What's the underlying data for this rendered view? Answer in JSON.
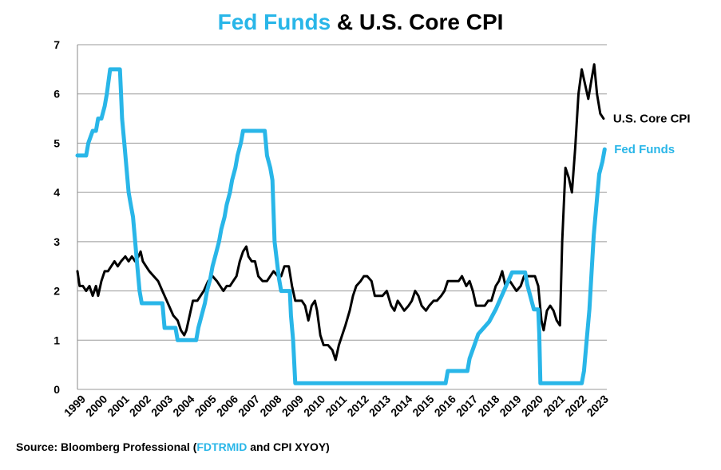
{
  "title": {
    "part1": "Fed Funds",
    "part2": " & U.S. Core CPI"
  },
  "source": {
    "prefix": "Source: Bloomberg Professional  (",
    "highlight": "FDTRMID",
    "suffix": " and CPI XYOY)"
  },
  "colors": {
    "fed_funds": "#29b6e8",
    "core_cpi": "#000000",
    "grid": "#999999"
  },
  "chart_data": {
    "type": "line",
    "title": "Fed Funds & U.S. Core CPI",
    "xlim": [
      1999,
      2023.3
    ],
    "ylim": [
      0,
      7
    ],
    "yticks": [
      0,
      1,
      2,
      3,
      4,
      5,
      6,
      7
    ],
    "xticks": [
      "1999",
      "2000",
      "2001",
      "2002",
      "2003",
      "2004",
      "2005",
      "2006",
      "2007",
      "2008",
      "2009",
      "2010",
      "2011",
      "2012",
      "2013",
      "2014",
      "2015",
      "2016",
      "2017",
      "2018",
      "2019",
      "2020",
      "2021",
      "2022",
      "2023"
    ],
    "grid": "horizontal",
    "legend": "labels at right end of lines",
    "series": [
      {
        "name": "U.S. Core CPI",
        "color": "#000000",
        "points": [
          [
            1999.0,
            2.4
          ],
          [
            1999.1,
            2.1
          ],
          [
            1999.25,
            2.1
          ],
          [
            1999.4,
            2.0
          ],
          [
            1999.55,
            2.1
          ],
          [
            1999.7,
            1.9
          ],
          [
            1999.85,
            2.1
          ],
          [
            1999.95,
            1.9
          ],
          [
            2000.1,
            2.2
          ],
          [
            2000.25,
            2.4
          ],
          [
            2000.4,
            2.4
          ],
          [
            2000.55,
            2.5
          ],
          [
            2000.7,
            2.6
          ],
          [
            2000.85,
            2.5
          ],
          [
            2001.0,
            2.6
          ],
          [
            2001.2,
            2.7
          ],
          [
            2001.35,
            2.6
          ],
          [
            2001.5,
            2.7
          ],
          [
            2001.65,
            2.6
          ],
          [
            2001.8,
            2.7
          ],
          [
            2001.9,
            2.8
          ],
          [
            2002.0,
            2.6
          ],
          [
            2002.15,
            2.5
          ],
          [
            2002.3,
            2.4
          ],
          [
            2002.5,
            2.3
          ],
          [
            2002.7,
            2.2
          ],
          [
            2002.9,
            2.0
          ],
          [
            2003.0,
            1.9
          ],
          [
            2003.2,
            1.7
          ],
          [
            2003.4,
            1.5
          ],
          [
            2003.6,
            1.4
          ],
          [
            2003.75,
            1.2
          ],
          [
            2003.9,
            1.1
          ],
          [
            2004.0,
            1.2
          ],
          [
            2004.15,
            1.5
          ],
          [
            2004.3,
            1.8
          ],
          [
            2004.5,
            1.8
          ],
          [
            2004.65,
            1.9
          ],
          [
            2004.8,
            2.0
          ],
          [
            2005.0,
            2.2
          ],
          [
            2005.2,
            2.3
          ],
          [
            2005.4,
            2.2
          ],
          [
            2005.55,
            2.1
          ],
          [
            2005.7,
            2.0
          ],
          [
            2005.85,
            2.1
          ],
          [
            2006.0,
            2.1
          ],
          [
            2006.15,
            2.2
          ],
          [
            2006.3,
            2.3
          ],
          [
            2006.45,
            2.6
          ],
          [
            2006.6,
            2.8
          ],
          [
            2006.75,
            2.9
          ],
          [
            2006.85,
            2.7
          ],
          [
            2007.0,
            2.6
          ],
          [
            2007.15,
            2.6
          ],
          [
            2007.3,
            2.3
          ],
          [
            2007.5,
            2.2
          ],
          [
            2007.7,
            2.2
          ],
          [
            2007.85,
            2.3
          ],
          [
            2008.0,
            2.4
          ],
          [
            2008.2,
            2.3
          ],
          [
            2008.35,
            2.3
          ],
          [
            2008.5,
            2.5
          ],
          [
            2008.7,
            2.5
          ],
          [
            2008.85,
            2.1
          ],
          [
            2009.0,
            1.8
          ],
          [
            2009.15,
            1.8
          ],
          [
            2009.3,
            1.8
          ],
          [
            2009.45,
            1.7
          ],
          [
            2009.6,
            1.4
          ],
          [
            2009.75,
            1.7
          ],
          [
            2009.9,
            1.8
          ],
          [
            2010.0,
            1.6
          ],
          [
            2010.15,
            1.1
          ],
          [
            2010.3,
            0.9
          ],
          [
            2010.5,
            0.9
          ],
          [
            2010.7,
            0.8
          ],
          [
            2010.85,
            0.6
          ],
          [
            2011.0,
            0.9
          ],
          [
            2011.15,
            1.1
          ],
          [
            2011.3,
            1.3
          ],
          [
            2011.5,
            1.6
          ],
          [
            2011.65,
            1.9
          ],
          [
            2011.8,
            2.1
          ],
          [
            2012.0,
            2.2
          ],
          [
            2012.15,
            2.3
          ],
          [
            2012.3,
            2.3
          ],
          [
            2012.5,
            2.2
          ],
          [
            2012.65,
            1.9
          ],
          [
            2012.85,
            1.9
          ],
          [
            2013.0,
            1.9
          ],
          [
            2013.2,
            2.0
          ],
          [
            2013.4,
            1.7
          ],
          [
            2013.55,
            1.6
          ],
          [
            2013.7,
            1.8
          ],
          [
            2013.85,
            1.7
          ],
          [
            2014.0,
            1.6
          ],
          [
            2014.2,
            1.7
          ],
          [
            2014.35,
            1.8
          ],
          [
            2014.5,
            2.0
          ],
          [
            2014.65,
            1.9
          ],
          [
            2014.8,
            1.7
          ],
          [
            2015.0,
            1.6
          ],
          [
            2015.15,
            1.7
          ],
          [
            2015.35,
            1.8
          ],
          [
            2015.5,
            1.8
          ],
          [
            2015.7,
            1.9
          ],
          [
            2015.85,
            2.0
          ],
          [
            2016.0,
            2.2
          ],
          [
            2016.15,
            2.2
          ],
          [
            2016.3,
            2.2
          ],
          [
            2016.5,
            2.2
          ],
          [
            2016.65,
            2.3
          ],
          [
            2016.85,
            2.1
          ],
          [
            2017.0,
            2.2
          ],
          [
            2017.15,
            2.0
          ],
          [
            2017.3,
            1.7
          ],
          [
            2017.5,
            1.7
          ],
          [
            2017.7,
            1.7
          ],
          [
            2017.85,
            1.8
          ],
          [
            2018.0,
            1.8
          ],
          [
            2018.2,
            2.1
          ],
          [
            2018.35,
            2.2
          ],
          [
            2018.5,
            2.4
          ],
          [
            2018.65,
            2.1
          ],
          [
            2018.85,
            2.2
          ],
          [
            2019.0,
            2.1
          ],
          [
            2019.15,
            2.0
          ],
          [
            2019.35,
            2.1
          ],
          [
            2019.5,
            2.3
          ],
          [
            2019.7,
            2.3
          ],
          [
            2019.85,
            2.3
          ],
          [
            2020.0,
            2.3
          ],
          [
            2020.15,
            2.1
          ],
          [
            2020.3,
            1.4
          ],
          [
            2020.4,
            1.2
          ],
          [
            2020.55,
            1.6
          ],
          [
            2020.7,
            1.7
          ],
          [
            2020.85,
            1.6
          ],
          [
            2021.0,
            1.4
          ],
          [
            2021.15,
            1.3
          ],
          [
            2021.25,
            3.0
          ],
          [
            2021.4,
            4.5
          ],
          [
            2021.55,
            4.3
          ],
          [
            2021.7,
            4.0
          ],
          [
            2021.85,
            4.9
          ],
          [
            2022.0,
            6.0
          ],
          [
            2022.15,
            6.5
          ],
          [
            2022.3,
            6.2
          ],
          [
            2022.45,
            5.9
          ],
          [
            2022.6,
            6.3
          ],
          [
            2022.72,
            6.6
          ],
          [
            2022.85,
            6.0
          ],
          [
            2023.0,
            5.6
          ],
          [
            2023.15,
            5.5
          ]
        ]
      },
      {
        "name": "Fed Funds",
        "color": "#29b6e8",
        "points": [
          [
            1999.0,
            4.75
          ],
          [
            1999.4,
            4.75
          ],
          [
            1999.5,
            5.0
          ],
          [
            1999.7,
            5.25
          ],
          [
            1999.85,
            5.25
          ],
          [
            1999.95,
            5.5
          ],
          [
            2000.1,
            5.5
          ],
          [
            2000.25,
            5.75
          ],
          [
            2000.35,
            6.0
          ],
          [
            2000.5,
            6.5
          ],
          [
            2000.95,
            6.5
          ],
          [
            2001.0,
            6.0
          ],
          [
            2001.05,
            5.5
          ],
          [
            2001.15,
            5.0
          ],
          [
            2001.25,
            4.5
          ],
          [
            2001.35,
            4.0
          ],
          [
            2001.45,
            3.75
          ],
          [
            2001.55,
            3.5
          ],
          [
            2001.65,
            3.0
          ],
          [
            2001.75,
            2.5
          ],
          [
            2001.85,
            2.0
          ],
          [
            2001.95,
            1.75
          ],
          [
            2002.9,
            1.75
          ],
          [
            2003.0,
            1.25
          ],
          [
            2003.5,
            1.25
          ],
          [
            2003.6,
            1.0
          ],
          [
            2004.45,
            1.0
          ],
          [
            2004.55,
            1.25
          ],
          [
            2004.7,
            1.5
          ],
          [
            2004.85,
            1.75
          ],
          [
            2004.95,
            2.0
          ],
          [
            2005.1,
            2.25
          ],
          [
            2005.2,
            2.5
          ],
          [
            2005.35,
            2.75
          ],
          [
            2005.5,
            3.0
          ],
          [
            2005.6,
            3.25
          ],
          [
            2005.75,
            3.5
          ],
          [
            2005.85,
            3.75
          ],
          [
            2006.0,
            4.0
          ],
          [
            2006.1,
            4.25
          ],
          [
            2006.25,
            4.5
          ],
          [
            2006.35,
            4.75
          ],
          [
            2006.5,
            5.0
          ],
          [
            2006.6,
            5.25
          ],
          [
            2007.6,
            5.25
          ],
          [
            2007.7,
            4.75
          ],
          [
            2007.85,
            4.5
          ],
          [
            2007.95,
            4.25
          ],
          [
            2008.05,
            3.0
          ],
          [
            2008.25,
            2.25
          ],
          [
            2008.35,
            2.0
          ],
          [
            2008.75,
            2.0
          ],
          [
            2008.8,
            1.5
          ],
          [
            2008.9,
            1.0
          ],
          [
            2009.0,
            0.125
          ],
          [
            2015.9,
            0.125
          ],
          [
            2016.0,
            0.375
          ],
          [
            2016.9,
            0.375
          ],
          [
            2017.0,
            0.625
          ],
          [
            2017.2,
            0.875
          ],
          [
            2017.4,
            1.125
          ],
          [
            2017.9,
            1.375
          ],
          [
            2018.2,
            1.625
          ],
          [
            2018.45,
            1.875
          ],
          [
            2018.7,
            2.125
          ],
          [
            2018.95,
            2.375
          ],
          [
            2019.55,
            2.375
          ],
          [
            2019.65,
            2.125
          ],
          [
            2019.8,
            1.875
          ],
          [
            2019.95,
            1.625
          ],
          [
            2020.15,
            1.625
          ],
          [
            2020.2,
            1.125
          ],
          [
            2020.25,
            0.125
          ],
          [
            2022.15,
            0.125
          ],
          [
            2022.25,
            0.375
          ],
          [
            2022.35,
            0.875
          ],
          [
            2022.5,
            1.625
          ],
          [
            2022.6,
            2.375
          ],
          [
            2022.7,
            3.125
          ],
          [
            2022.85,
            3.875
          ],
          [
            2022.95,
            4.375
          ],
          [
            2023.1,
            4.625
          ],
          [
            2023.2,
            4.875
          ]
        ]
      }
    ]
  }
}
